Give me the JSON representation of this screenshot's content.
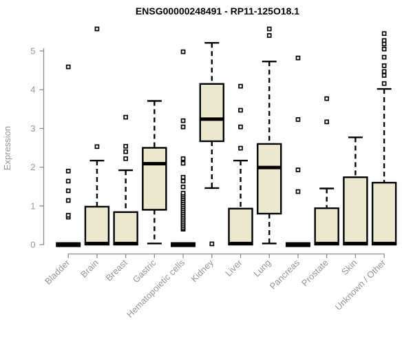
{
  "chart_data": {
    "type": "boxplot",
    "title": "ENSG00000248491 - RP11-125O18.1",
    "ylabel": "Expression",
    "xlabel": "",
    "ylim": [
      0,
      5.7
    ],
    "yticks": [
      0,
      1,
      2,
      3,
      4,
      5
    ],
    "grid": false,
    "legend": "none",
    "categories": [
      "Bladder",
      "Brain",
      "Breast",
      "Gastric",
      "Hematopoietic cells",
      "Kidney",
      "Liver",
      "Lung",
      "Pancreas",
      "Prostate",
      "Skin",
      "Unknown / Other"
    ],
    "series": [
      {
        "name": "Bladder",
        "whisker_low": 0,
        "q1": 0,
        "median": 0,
        "q3": 0,
        "whisker_high": 0,
        "outliers": [
          0.71,
          0.76,
          1.14,
          1.39,
          1.64,
          1.9,
          4.59
        ]
      },
      {
        "name": "Brain",
        "whisker_low": 0,
        "q1": 0,
        "median": 0.03,
        "q3": 0.98,
        "whisker_high": 2.17,
        "outliers": [
          2.53,
          5.57
        ]
      },
      {
        "name": "Breast",
        "whisker_low": 0,
        "q1": 0,
        "median": 0.03,
        "q3": 0.84,
        "whisker_high": 1.92,
        "outliers": [
          2.22,
          2.4,
          2.54,
          3.29
        ]
      },
      {
        "name": "Gastric",
        "whisker_low": 0.03,
        "q1": 0.9,
        "median": 2.09,
        "q3": 2.5,
        "whisker_high": 3.71,
        "outliers": []
      },
      {
        "name": "Hematopoietic cells",
        "whisker_low": 0,
        "q1": 0,
        "median": 0,
        "q3": 0,
        "whisker_high": 0,
        "outliers": [
          0.4,
          0.43,
          0.48,
          0.53,
          0.58,
          0.63,
          0.68,
          0.73,
          0.78,
          0.83,
          0.88,
          0.93,
          0.98,
          1.03,
          1.08,
          1.13,
          1.18,
          1.23,
          1.28,
          1.33,
          1.49,
          1.64,
          1.74,
          2.1,
          2.22,
          3.04,
          3.2,
          4.98
        ]
      },
      {
        "name": "Kidney",
        "whisker_low": 1.46,
        "q1": 2.67,
        "median": 3.24,
        "q3": 4.15,
        "whisker_high": 5.21,
        "outliers": [
          0.02
        ]
      },
      {
        "name": "Liver",
        "whisker_low": 0,
        "q1": 0,
        "median": 0.03,
        "q3": 0.93,
        "whisker_high": 2.17,
        "outliers": [
          2.49,
          3.04,
          3.47,
          4.09
        ]
      },
      {
        "name": "Lung",
        "whisker_low": 0.03,
        "q1": 0.8,
        "median": 1.99,
        "q3": 2.6,
        "whisker_high": 4.73,
        "outliers": [
          5.4,
          5.57
        ]
      },
      {
        "name": "Pancreas",
        "whisker_low": 0,
        "q1": 0,
        "median": 0,
        "q3": 0,
        "whisker_high": 0,
        "outliers": [
          1.37,
          1.93,
          3.23,
          4.82
        ]
      },
      {
        "name": "Prostate",
        "whisker_low": 0,
        "q1": 0,
        "median": 0.03,
        "q3": 0.94,
        "whisker_high": 1.45,
        "outliers": [
          3.17,
          3.77
        ]
      },
      {
        "name": "Skin",
        "whisker_low": 0,
        "q1": 0,
        "median": 0.03,
        "q3": 1.74,
        "whisker_high": 2.77,
        "outliers": []
      },
      {
        "name": "Unknown / Other",
        "whisker_low": 0,
        "q1": 0,
        "median": 0.03,
        "q3": 1.6,
        "whisker_high": 4.02,
        "outliers": [
          4.16,
          4.37,
          4.47,
          4.62,
          4.84,
          5.05,
          5.18,
          5.27,
          5.45
        ]
      }
    ],
    "colors": {
      "box_fill": "#ece8cd",
      "box_stroke": "#000000",
      "median": "#000000",
      "whisker": "#000000",
      "outlier_stroke": "#000000",
      "outlier_fill": "#ffffff",
      "axis_line": "#8c8c8c",
      "tick_label": "#969696",
      "title": "#000000",
      "background": "#ffffff"
    }
  }
}
